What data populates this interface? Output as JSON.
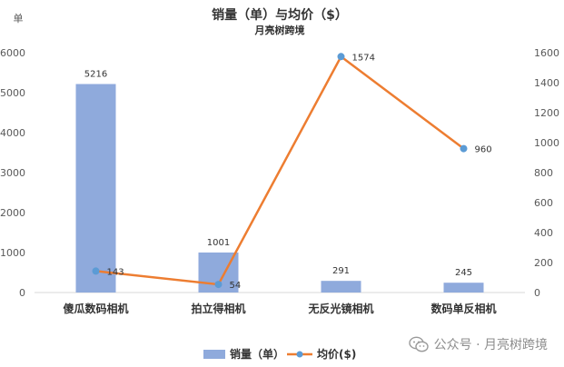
{
  "chart_data": {
    "type": "bar",
    "title": "销量（单）与均价（$）",
    "subtitle": "月亮树跨境",
    "categories": [
      "傻瓜数码相机",
      "拍立得相机",
      "无反光镜相机",
      "数码单反相机"
    ],
    "series": [
      {
        "name": "销量（单）",
        "type": "bar",
        "axis": "left",
        "values": [
          5216,
          1001,
          291,
          245
        ]
      },
      {
        "name": "均价($)",
        "type": "line",
        "axis": "right",
        "values": [
          143,
          54,
          1574,
          960
        ]
      }
    ],
    "y_left": {
      "label": "单",
      "min": 0,
      "max": 6000,
      "step": 1000
    },
    "y_right": {
      "min": 0,
      "max": 1600,
      "step": 200
    },
    "grid": false,
    "legend": "bottom",
    "colors": {
      "bar": "#8faadc",
      "line": "#ed7d31"
    }
  },
  "watermark": {
    "text": "公众号 · 月亮树跨境",
    "icon": "wechat-icon"
  }
}
